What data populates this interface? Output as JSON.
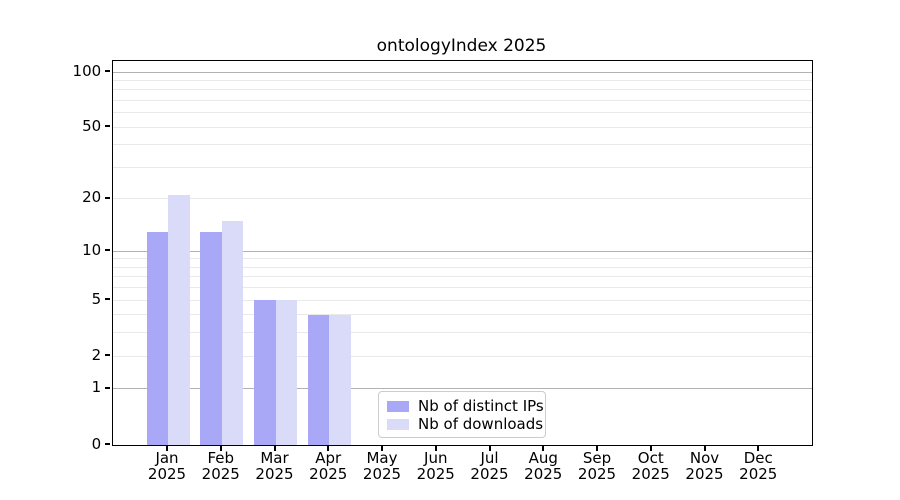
{
  "title": "ontologyIndex 2025",
  "chart_data": {
    "type": "bar",
    "title": "ontologyIndex 2025",
    "categories": [
      "Jan 2025",
      "Feb 2025",
      "Mar 2025",
      "Apr 2025",
      "May 2025",
      "Jun 2025",
      "Jul 2025",
      "Aug 2025",
      "Sep 2025",
      "Oct 2025",
      "Nov 2025",
      "Dec 2025"
    ],
    "series": [
      {
        "name": "Nb of distinct IPs",
        "color": "#a8a8f7",
        "values": [
          13,
          13,
          5,
          4,
          null,
          null,
          null,
          null,
          null,
          null,
          null,
          null
        ]
      },
      {
        "name": "Nb of downloads",
        "color": "#dadaf9",
        "values": [
          21,
          15,
          5,
          4,
          null,
          null,
          null,
          null,
          null,
          null,
          null,
          null
        ]
      }
    ],
    "xlabel": "",
    "ylabel": "",
    "yscale": "log1p",
    "ylim": [
      0,
      114
    ],
    "yticks": [
      0,
      1,
      2,
      5,
      10,
      20,
      50,
      100
    ],
    "gridlines": {
      "major": [
        1,
        10,
        100
      ],
      "minor": [
        2,
        3,
        4,
        5,
        6,
        7,
        8,
        9,
        20,
        30,
        40,
        50,
        60,
        70,
        80,
        90
      ]
    },
    "grid": "horizontal",
    "legend_position": "lower-center"
  },
  "colors": {
    "background": "#ffffff",
    "axis": "#000000",
    "major_grid": "#b2b2b2",
    "minor_grid": "#e9e9e9",
    "legend_border": "#cccccc"
  }
}
